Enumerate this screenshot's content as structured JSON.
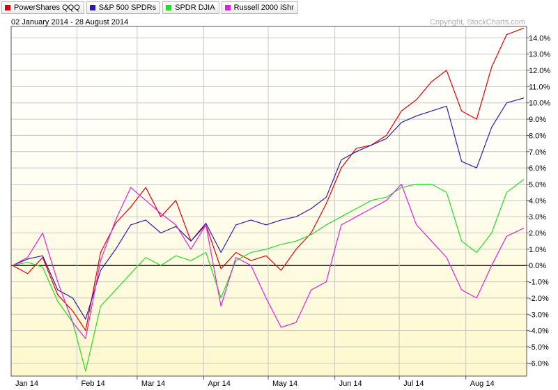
{
  "chart_data": {
    "type": "line",
    "date_range": "02 January 2014 - 28 August 2014",
    "copyright": "Copyright, StockCharts.com",
    "y_unit": "%",
    "ylim": [
      -6.8,
      14.7
    ],
    "y_ticks": [
      -6,
      -5,
      -4,
      -3,
      -2,
      -1,
      0,
      1,
      2,
      3,
      4,
      5,
      6,
      7,
      8,
      9,
      10,
      11,
      12,
      13,
      14
    ],
    "y_tick_labels": [
      "-6.0%",
      "-5.0%",
      "-4.0%",
      "-3.0%",
      "-2.0%",
      "-1.0%",
      "0.0%",
      "1.0%",
      "2.0%",
      "3.0%",
      "4.0%",
      "5.0%",
      "6.0%",
      "7.0%",
      "8.0%",
      "9.0%",
      "10.0%",
      "11.0%",
      "12.0%",
      "13.0%",
      "14.0%"
    ],
    "x_month_labels": [
      "Jan 14",
      "Feb 14",
      "Mar 14",
      "Apr 14",
      "May 14",
      "Jun 14",
      "Jul 14",
      "Aug 14"
    ],
    "grid": true,
    "legend_position": "top-left",
    "x_points": [
      "2014-01-02",
      "2014-01-09",
      "2014-01-16",
      "2014-01-23",
      "2014-01-30",
      "2014-02-05",
      "2014-02-12",
      "2014-02-19",
      "2014-02-26",
      "2014-03-05",
      "2014-03-12",
      "2014-03-19",
      "2014-03-26",
      "2014-04-02",
      "2014-04-09",
      "2014-04-16",
      "2014-04-23",
      "2014-04-30",
      "2014-05-07",
      "2014-05-14",
      "2014-05-21",
      "2014-05-28",
      "2014-06-04",
      "2014-06-11",
      "2014-06-18",
      "2014-06-25",
      "2014-07-02",
      "2014-07-09",
      "2014-07-16",
      "2014-07-23",
      "2014-07-30",
      "2014-08-06",
      "2014-08-13",
      "2014-08-20",
      "2014-08-28"
    ],
    "series": [
      {
        "name": "PowerShares QQQ",
        "color": "#e00000",
        "values": [
          0.0,
          -0.5,
          0.5,
          -1.8,
          -2.8,
          -4.0,
          0.8,
          2.6,
          3.6,
          4.8,
          3.0,
          4.0,
          1.5,
          2.5,
          -0.2,
          0.8,
          0.3,
          0.6,
          -0.3,
          1.0,
          2.0,
          3.8,
          6.0,
          7.2,
          7.4,
          8.0,
          9.5,
          10.2,
          11.3,
          12.0,
          9.5,
          9.0,
          12.2,
          14.2,
          14.6
        ]
      },
      {
        "name": "S&P 500 SPDRs",
        "color": "#2a1ab0",
        "values": [
          0.0,
          0.4,
          0.6,
          -1.5,
          -2.0,
          -3.3,
          -0.3,
          1.0,
          2.5,
          2.8,
          2.0,
          2.4,
          1.5,
          2.6,
          0.8,
          2.5,
          2.8,
          2.5,
          2.8,
          3.0,
          3.5,
          4.2,
          6.5,
          7.0,
          7.4,
          7.8,
          8.8,
          9.2,
          9.5,
          9.8,
          6.4,
          6.0,
          8.5,
          10.0,
          10.3
        ]
      },
      {
        "name": "SPDR DJIA",
        "color": "#22dd22",
        "values": [
          0.0,
          0.2,
          -0.1,
          -2.2,
          -3.5,
          -6.5,
          -2.5,
          -1.5,
          -0.5,
          0.5,
          0.0,
          0.6,
          0.3,
          0.8,
          -2.0,
          0.3,
          0.8,
          1.0,
          1.3,
          1.5,
          1.9,
          2.5,
          3.0,
          3.5,
          4.0,
          4.2,
          4.8,
          5.0,
          5.0,
          4.5,
          1.5,
          0.8,
          2.0,
          4.5,
          5.3
        ]
      },
      {
        "name": "Russell 2000 iShr",
        "color": "#dd22dd",
        "values": [
          0.0,
          0.5,
          2.0,
          -1.0,
          -3.5,
          -4.5,
          0.3,
          2.8,
          4.8,
          4.0,
          3.2,
          2.5,
          1.0,
          2.5,
          -2.5,
          0.5,
          0.0,
          -2.0,
          -3.8,
          -3.5,
          -1.5,
          -1.0,
          2.5,
          3.0,
          3.5,
          4.0,
          5.0,
          2.5,
          1.5,
          0.5,
          -1.5,
          -2.0,
          0.0,
          1.8,
          2.3
        ]
      }
    ]
  }
}
